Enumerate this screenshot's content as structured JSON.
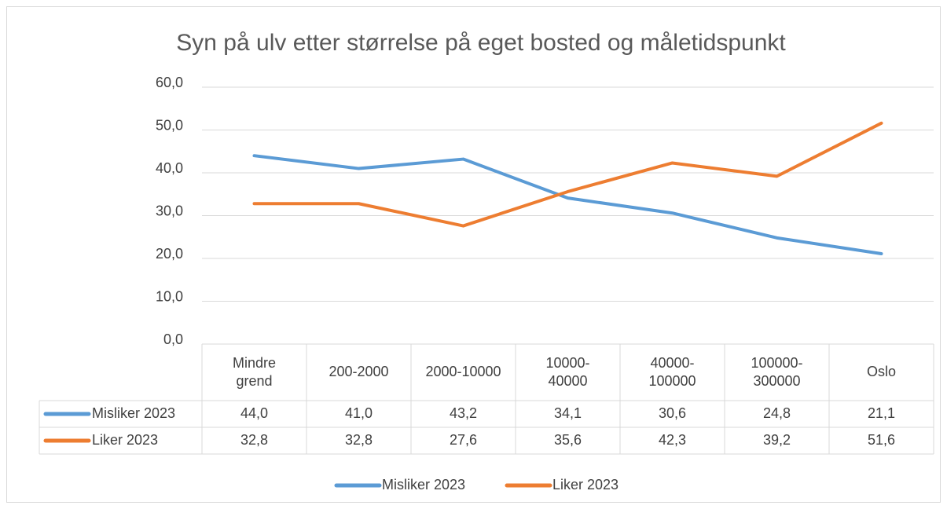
{
  "chart_data": {
    "type": "line",
    "title": "Syn på ulv etter størrelse på eget bosted og måletidspunkt",
    "categories": [
      "Mindre grend",
      "200-2000",
      "2000-10000",
      "10000-40000",
      "40000-100000",
      "100000-300000",
      "Oslo"
    ],
    "series": [
      {
        "name": "Misliker 2023",
        "color": "#5b9bd5",
        "values": [
          44.0,
          41.0,
          43.2,
          34.1,
          30.6,
          24.8,
          21.1
        ],
        "value_labels": [
          "44,0",
          "41,0",
          "43,2",
          "34,1",
          "30,6",
          "24,8",
          "21,1"
        ]
      },
      {
        "name": "Liker 2023",
        "color": "#ed7d31",
        "values": [
          32.8,
          32.8,
          27.6,
          35.6,
          42.3,
          39.2,
          51.6
        ],
        "value_labels": [
          "32,8",
          "32,8",
          "27,6",
          "35,6",
          "42,3",
          "39,2",
          "51,6"
        ]
      }
    ],
    "ylim": [
      0,
      60
    ],
    "yticks": [
      {
        "value": 0,
        "label": "0,0"
      },
      {
        "value": 10,
        "label": "10,0"
      },
      {
        "value": 20,
        "label": "20,0"
      },
      {
        "value": 30,
        "label": "30,0"
      },
      {
        "value": 40,
        "label": "40,0"
      },
      {
        "value": 50,
        "label": "50,0"
      },
      {
        "value": 60,
        "label": "60,0"
      }
    ],
    "grid": true,
    "legend": "bottom"
  }
}
